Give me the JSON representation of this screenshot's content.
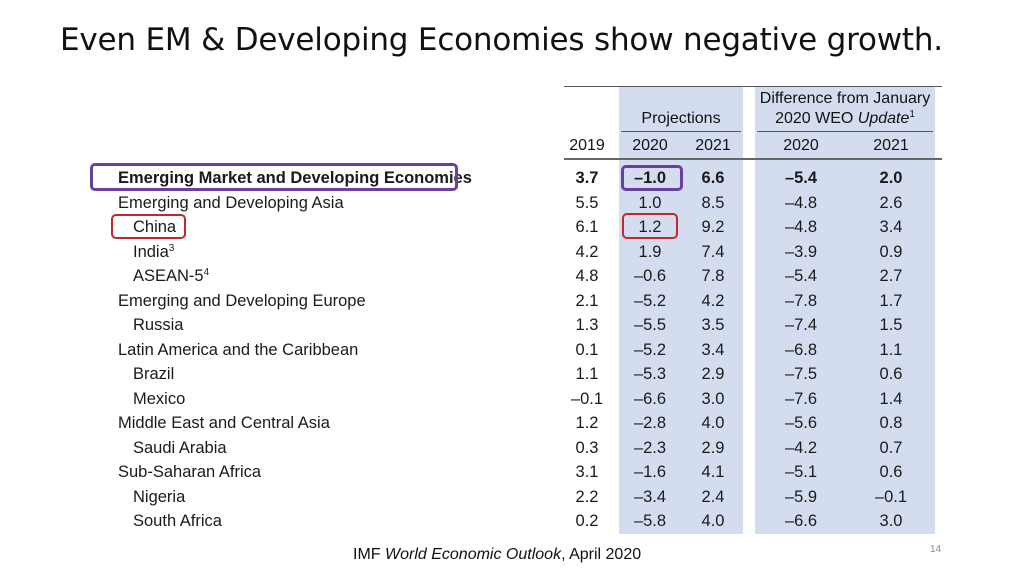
{
  "slide": {
    "title": "Even EM & Developing Economies show negative growth.",
    "page_number": "14",
    "source": {
      "prefix": "IMF ",
      "publication": "World Economic Outlook",
      "suffix": ", April 2020"
    }
  },
  "table": {
    "headers": {
      "projections": "Projections",
      "difference_line1": "Difference from January",
      "difference_line2_prefix": "2020 WEO ",
      "difference_line2_italic": "Update",
      "difference_footnote": "1",
      "col_2019": "2019",
      "col_2020": "2020",
      "col_2021": "2021",
      "diff_2020": "2020",
      "diff_2021": "2021"
    },
    "rows": [
      {
        "label": "Emerging Market and Developing Economies",
        "sup": "",
        "y2019": "3.7",
        "y2020": "–1.0",
        "y2021": "6.6",
        "d2020": "–5.4",
        "d2021": "2.0"
      },
      {
        "label": "Emerging and Developing Asia",
        "sup": "",
        "y2019": "5.5",
        "y2020": "1.0",
        "y2021": "8.5",
        "d2020": "–4.8",
        "d2021": "2.6"
      },
      {
        "label": "China",
        "sup": "",
        "y2019": "6.1",
        "y2020": "1.2",
        "y2021": "9.2",
        "d2020": "–4.8",
        "d2021": "3.4"
      },
      {
        "label": "India",
        "sup": "3",
        "y2019": "4.2",
        "y2020": "1.9",
        "y2021": "7.4",
        "d2020": "–3.9",
        "d2021": "0.9"
      },
      {
        "label": "ASEAN-5",
        "sup": "4",
        "y2019": "4.8",
        "y2020": "–0.6",
        "y2021": "7.8",
        "d2020": "–5.4",
        "d2021": "2.7"
      },
      {
        "label": "Emerging and Developing Europe",
        "sup": "",
        "y2019": "2.1",
        "y2020": "–5.2",
        "y2021": "4.2",
        "d2020": "–7.8",
        "d2021": "1.7"
      },
      {
        "label": "Russia",
        "sup": "",
        "y2019": "1.3",
        "y2020": "–5.5",
        "y2021": "3.5",
        "d2020": "–7.4",
        "d2021": "1.5"
      },
      {
        "label": "Latin America and the Caribbean",
        "sup": "",
        "y2019": "0.1",
        "y2020": "–5.2",
        "y2021": "3.4",
        "d2020": "–6.8",
        "d2021": "1.1"
      },
      {
        "label": "Brazil",
        "sup": "",
        "y2019": "1.1",
        "y2020": "–5.3",
        "y2021": "2.9",
        "d2020": "–7.5",
        "d2021": "0.6"
      },
      {
        "label": "Mexico",
        "sup": "",
        "y2019": "–0.1",
        "y2020": "–6.6",
        "y2021": "3.0",
        "d2020": "–7.6",
        "d2021": "1.4"
      },
      {
        "label": "Middle East and Central Asia",
        "sup": "",
        "y2019": "1.2",
        "y2020": "–2.8",
        "y2021": "4.0",
        "d2020": "–5.6",
        "d2021": "0.8"
      },
      {
        "label": "Saudi Arabia",
        "sup": "",
        "y2019": "0.3",
        "y2020": "–2.3",
        "y2021": "2.9",
        "d2020": "–4.2",
        "d2021": "0.7"
      },
      {
        "label": "Sub-Saharan Africa",
        "sup": "",
        "y2019": "3.1",
        "y2020": "–1.6",
        "y2021": "4.1",
        "d2020": "–5.1",
        "d2021": "0.6"
      },
      {
        "label": "Nigeria",
        "sup": "",
        "y2019": "2.2",
        "y2020": "–3.4",
        "y2021": "2.4",
        "d2020": "–5.9",
        "d2021": "–0.1"
      },
      {
        "label": "South Africa",
        "sup": "",
        "y2019": "0.2",
        "y2020": "–5.8",
        "y2021": "4.0",
        "d2020": "–6.6",
        "d2021": "3.0"
      }
    ]
  },
  "colors": {
    "highlight_purple": "#6b3fa0",
    "highlight_red": "#c0282b",
    "column_shade": "#d4ddf0"
  }
}
